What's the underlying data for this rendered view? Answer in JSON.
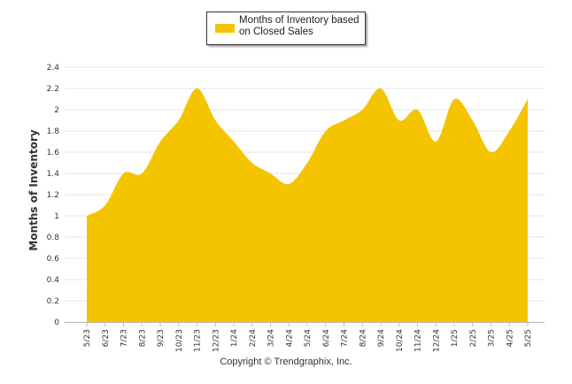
{
  "colors": {
    "fill": "#F5C400",
    "grid": "#E6E6E6",
    "axis": "#BBBBBB",
    "text": "#333333"
  },
  "legend": {
    "label": "Months of Inventory based on Closed Sales"
  },
  "copyright": "Copyright © Trendgraphix, Inc.",
  "chart_data": {
    "type": "area",
    "ylabel": "Months of Inventory",
    "ylim": [
      0,
      2.4
    ],
    "yticks": [
      "0",
      "0.2",
      "0.4",
      "0.6",
      "0.8",
      "1",
      "1.2",
      "1.4",
      "1.6",
      "1.8",
      "2",
      "2.2",
      "2.4"
    ],
    "grid": true,
    "legend_position": "top-center",
    "categories": [
      "5/23",
      "6/23",
      "7/23",
      "8/23",
      "9/23",
      "10/23",
      "11/23",
      "12/23",
      "1/24",
      "2/24",
      "3/24",
      "4/24",
      "5/24",
      "6/24",
      "7/24",
      "8/24",
      "9/24",
      "10/24",
      "11/24",
      "12/24",
      "1/25",
      "2/25",
      "3/25",
      "4/25",
      "5/25"
    ],
    "series": [
      {
        "name": "Months of Inventory based on Closed Sales",
        "values": [
          1.0,
          1.1,
          1.4,
          1.4,
          1.7,
          1.9,
          2.2,
          1.9,
          1.7,
          1.5,
          1.4,
          1.3,
          1.5,
          1.8,
          1.9,
          2.0,
          2.2,
          1.9,
          2.0,
          1.7,
          2.1,
          1.9,
          1.6,
          1.8,
          2.1
        ]
      }
    ]
  }
}
